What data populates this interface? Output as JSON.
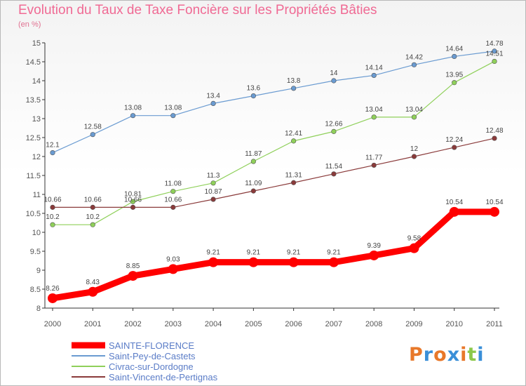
{
  "chart_data": {
    "type": "line",
    "title": "Evolution du Taux de Taxe Foncière sur les Propriétés Bâties",
    "subtitle": "(en %)",
    "x": [
      "2000",
      "2001",
      "2002",
      "2003",
      "2004",
      "2005",
      "2006",
      "2007",
      "2008",
      "2009",
      "2010",
      "2011"
    ],
    "y_ticks": [
      "8",
      "8.5",
      "9",
      "9.5",
      "10",
      "10.5",
      "11",
      "11.5",
      "12",
      "12.5",
      "13",
      "13.5",
      "14",
      "14.5",
      "15"
    ],
    "ylim": [
      8,
      15
    ],
    "grid": false,
    "legend_position": "bottom-left",
    "series": [
      {
        "name": "SAINTE-FLORENCE",
        "color": "#ff0000",
        "values": [
          8.26,
          8.43,
          8.85,
          9.03,
          9.21,
          9.21,
          9.21,
          9.21,
          9.39,
          9.58,
          10.54,
          10.54
        ],
        "labels": [
          "8.26",
          "8.43",
          "8.85",
          "9.03",
          "9.21",
          "9.21",
          "9.21",
          "9.21",
          "9.39",
          "9.58",
          "10.54",
          "10.54"
        ]
      },
      {
        "name": "Saint-Pey-de-Castets",
        "color": "#6a9bd1",
        "values": [
          12.1,
          12.58,
          13.08,
          13.08,
          13.4,
          13.6,
          13.8,
          14.0,
          14.14,
          14.42,
          14.64,
          14.78
        ],
        "labels": [
          "12.1",
          "12.58",
          "13.08",
          "13.08",
          "13.4",
          "13.6",
          "13.8",
          "14",
          "14.14",
          "14.42",
          "14.64",
          "14.78"
        ]
      },
      {
        "name": "Civrac-sur-Dordogne",
        "color": "#8fd05a",
        "values": [
          10.2,
          10.2,
          10.81,
          11.08,
          11.3,
          11.87,
          12.41,
          12.66,
          13.04,
          13.04,
          13.95,
          14.51
        ],
        "labels": [
          "10.2",
          "10.2",
          "10.81",
          "11.08",
          "11.3",
          "11.87",
          "12.41",
          "12.66",
          "13.04",
          "13.04",
          "13.95",
          "14.51"
        ]
      },
      {
        "name": "Saint-Vincent-de-Pertignas",
        "color": "#8a3a3a",
        "values": [
          10.66,
          10.66,
          10.66,
          10.66,
          10.87,
          11.09,
          11.31,
          11.54,
          11.77,
          12.0,
          12.24,
          12.48
        ],
        "labels": [
          "10.66",
          "10.66",
          "10.66",
          "10.66",
          "10.87",
          "11.09",
          "11.31",
          "11.54",
          "11.77",
          "12",
          "12.24",
          "12.48"
        ]
      }
    ]
  },
  "logo": {
    "letters": [
      "P",
      "r",
      "o",
      "x",
      "i",
      "t",
      "i"
    ],
    "colors": [
      "#e8782a",
      "#3a8fd8",
      "#e8782a",
      "#3a8fd8",
      "#e8782a",
      "#8cc84b",
      "#3a8fd8"
    ]
  }
}
